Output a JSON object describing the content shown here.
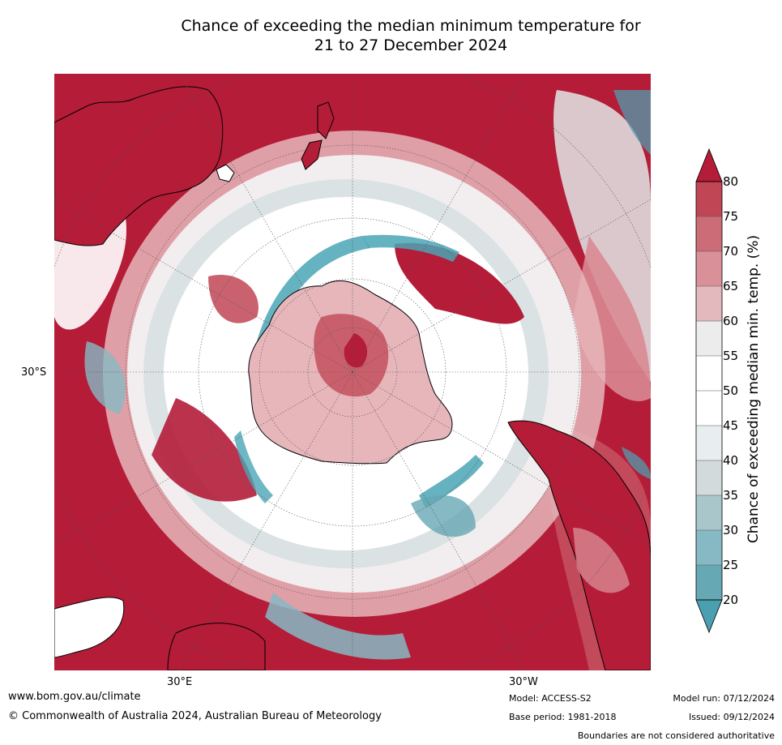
{
  "title_line1": "Chance of exceeding the median minimum temperature for",
  "title_line2": "21 to 27 December 2024",
  "map": {
    "projection": "south polar stereographic",
    "lat_label": "30°S",
    "lon_labels": [
      "30°E",
      "30°W"
    ],
    "colors": {
      "dark_red": "#b41c38",
      "red": "#c4505e",
      "pink": "#d88a92",
      "light_pink": "#e6b6bb",
      "white": "#ffffff",
      "light_grey": "#e2e6e8",
      "grey": "#c8d2d4",
      "teal": "#4aa5b5"
    }
  },
  "colorbar": {
    "title": "Chance of exceeding median min. temp. (%)",
    "ticks": [
      "80",
      "75",
      "70",
      "65",
      "60",
      "55",
      "50",
      "45",
      "40",
      "35",
      "30",
      "25",
      "20"
    ],
    "levels": [
      {
        "value": 80,
        "color": "#b41c38"
      },
      {
        "value": 75,
        "color": "#c04656"
      },
      {
        "value": 70,
        "color": "#cc6c76"
      },
      {
        "value": 65,
        "color": "#d99098"
      },
      {
        "value": 60,
        "color": "#e4b9bd"
      },
      {
        "value": 55,
        "color": "#ececec"
      },
      {
        "value": 50,
        "color": "#ffffff"
      },
      {
        "value": 45,
        "color": "#ffffff"
      },
      {
        "value": 40,
        "color": "#e8eef0"
      },
      {
        "value": 35,
        "color": "#d2dadb"
      },
      {
        "value": 30,
        "color": "#a9c6cb"
      },
      {
        "value": 25,
        "color": "#86b9c3"
      },
      {
        "value": 20,
        "color": "#66a8b4"
      }
    ],
    "over_color": "#b41c38",
    "under_color": "#4aa0b0"
  },
  "footer": {
    "website": "www.bom.gov.au/climate",
    "copyright": "© Commonwealth of Australia 2024, Australian Bureau of Meteorology",
    "model": "Model: ACCESS-S2",
    "base_period": "Base period: 1981-2018",
    "model_run": "Model run: 07/12/2024",
    "issued": "Issued: 09/12/2024",
    "boundaries": "Boundaries are not considered authoritative"
  }
}
